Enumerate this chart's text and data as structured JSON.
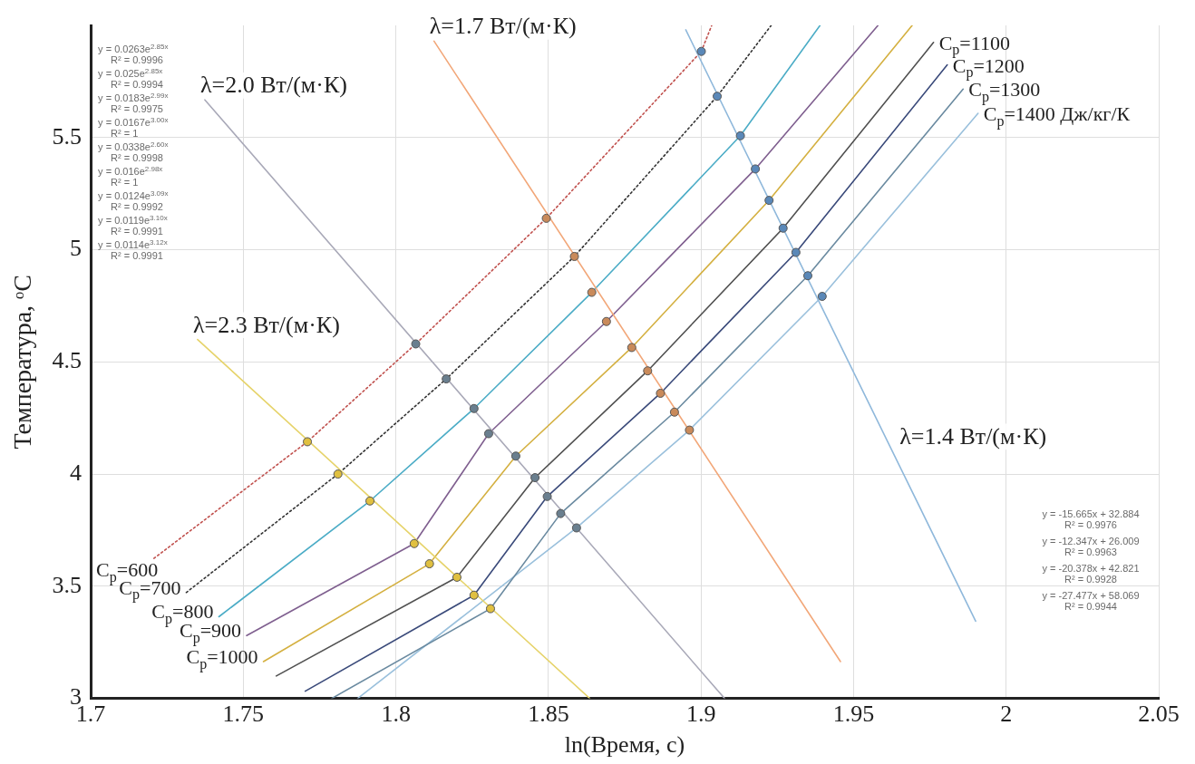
{
  "chart_data": {
    "type": "line",
    "xlabel": "ln(Время, с)",
    "ylabel": "Температура, ᵒC",
    "xlim": [
      1.7,
      2.05
    ],
    "ylim": [
      3,
      6
    ],
    "xticks": [
      1.7,
      1.75,
      1.8,
      1.85,
      1.9,
      1.95,
      2,
      2.05
    ],
    "yticks": [
      3,
      3.5,
      4,
      4.5,
      5,
      5.5
    ],
    "grid": true,
    "marker": "none",
    "line_style": "solid",
    "series": [
      {
        "type": "scatter",
        "marker": "circle",
        "color": "#e0c040",
        "x": [
          1.771,
          1.781,
          1.7915,
          1.806,
          1.811,
          1.82,
          1.8256,
          1.831
        ],
        "values": [
          4.144,
          4.0,
          3.88,
          3.69,
          3.6,
          3.54,
          3.46,
          3.4
        ]
      },
      {
        "type": "scatter",
        "marker": "circle",
        "color": "#6a7f8f",
        "x": [
          1.8065,
          1.8165,
          1.8256,
          1.8304,
          1.8393,
          1.8456,
          1.8496,
          1.854,
          1.8592
        ],
        "values": [
          4.58,
          4.424,
          4.292,
          4.18,
          4.08,
          3.984,
          3.9,
          3.824,
          3.76
        ]
      },
      {
        "type": "scatter",
        "marker": "circle",
        "color": "#c98a5a",
        "x": [
          1.8493,
          1.8585,
          1.8642,
          1.869,
          1.8773,
          1.8825,
          1.8867,
          1.8913,
          1.8962
        ],
        "values": [
          5.14,
          4.97,
          4.81,
          4.68,
          4.564,
          4.46,
          4.36,
          4.276,
          4.196
        ]
      },
      {
        "type": "scatter",
        "marker": "circle",
        "color": "#5a88b8",
        "x": [
          1.9001,
          1.9053,
          1.9129,
          1.9178,
          1.9223,
          1.9269,
          1.9311,
          1.935,
          1.9397
        ],
        "values": [
          5.884,
          5.684,
          5.508,
          5.36,
          5.22,
          5.096,
          4.988,
          4.884,
          4.792
        ]
      },
      {
        "name": "λ=2.0 Вт/(м·К)",
        "color": "#a9a9b8",
        "x": [
          1.7374,
          1.9077
        ],
        "values": [
          5.668,
          3.0
        ]
      },
      {
        "name": "λ=2.3 Вт/(м·К)",
        "color": "#e6d36a",
        "x": [
          1.735,
          1.8635
        ],
        "values": [
          4.6,
          3.0
        ]
      },
      {
        "name": "λ=1.7 Вт/(м·К)",
        "color": "#f2a779",
        "x": [
          1.8125,
          1.9457
        ],
        "values": [
          5.93,
          3.164
        ]
      },
      {
        "name": "λ=1.4 Вт/(м·К)",
        "color": "#8fb8db",
        "x": [
          1.895,
          1.99
        ],
        "values": [
          5.98,
          3.344
        ]
      },
      {
        "name": "C$_{p}$=600",
        "color": "#c0504d",
        "line_style": "dotted",
        "x": [
          1.7207,
          1.771,
          1.8065,
          1.8493,
          1.9001,
          1.9035
        ],
        "values": [
          3.624,
          4.144,
          4.58,
          5.14,
          5.884,
          6.0
        ]
      },
      {
        "name": "C$_{p}$=700",
        "color": "#333333",
        "line_style": "dotted",
        "x": [
          1.7313,
          1.781,
          1.8165,
          1.8585,
          1.9053,
          1.923
        ],
        "values": [
          3.472,
          4.0,
          4.424,
          4.97,
          5.684,
          6.0
        ]
      },
      {
        "name": "C$_{p}$=800",
        "color": "#4bacc6",
        "x": [
          1.742,
          1.7915,
          1.8256,
          1.8642,
          1.9129,
          1.939
        ],
        "values": [
          3.364,
          3.88,
          4.292,
          4.81,
          5.508,
          6.0
        ]
      },
      {
        "name": "C$_{p}$=900",
        "color": "#7f5f8f",
        "x": [
          1.7511,
          1.806,
          1.8304,
          1.869,
          1.9178,
          1.958
        ],
        "values": [
          3.28,
          3.69,
          4.18,
          4.68,
          5.36,
          6.0
        ]
      },
      {
        "name": "C$_{p}$=1000",
        "color": "#d4b040",
        "x": [
          1.7566,
          1.811,
          1.8393,
          1.8773,
          1.9223,
          1.9692
        ],
        "values": [
          3.164,
          3.6,
          4.08,
          4.564,
          5.22,
          6.0
        ]
      },
      {
        "name": "C$_{p}$=1100",
        "color": "#505050",
        "x": [
          1.7608,
          1.82,
          1.8456,
          1.8825,
          1.9269,
          1.9762
        ],
        "values": [
          3.1,
          3.54,
          3.984,
          4.46,
          5.096,
          5.924
        ]
      },
      {
        "name": "C$_{p}$=1200",
        "color": "#3a4a7a",
        "x": [
          1.7703,
          1.8256,
          1.8496,
          1.8867,
          1.9311,
          1.9807
        ],
        "values": [
          3.032,
          3.46,
          3.9,
          4.36,
          4.988,
          5.824
        ]
      },
      {
        "name": "C$_{p}$=1300",
        "color": "#6a8aa0",
        "x": [
          1.779,
          1.831,
          1.854,
          1.8913,
          1.935,
          1.9859
        ],
        "values": [
          3.0,
          3.4,
          3.824,
          4.276,
          4.884,
          5.716
        ]
      },
      {
        "name": "C$_{p}$=1400 Дж/кг/К",
        "color": "#9ac0dc",
        "x": [
          1.7875,
          1.8592,
          1.8962,
          1.9397,
          1.9908
        ],
        "values": [
          3.0,
          3.76,
          4.196,
          4.792,
          5.608
        ]
      }
    ],
    "annotations": [
      "y = -15.665x + 32.884\nR² = 0.9976",
      "y = -12.347x + 26.009\nR² = 0.9963",
      "y = -20.378x + 42.821\nR² = 0.9928",
      "y = -27.477x + 58.069\nR² = 0.9944",
      "y = 0.0263e$^{2.85x}$\nR² = 0.9996",
      "y = 0.025e$^{2.85x}$\nR² = 0.9994",
      "y = 0.0183e$^{2.99x}$\nR² = 0.9975",
      "y = 0.0167e$^{3.00x}$\nR² = 1",
      "y = 0.0338e$^{2.60x}$\nR² = 0.9998",
      "y = 0.016e$^{2.98x}$\nR² = 1",
      "y = 0.0124e$^{3.09x}$\nR² = 0.9992",
      "y = 0.0119e$^{3.10x}$\nR² = 0.9991",
      "y = 0.0114e$^{3.12x}$\nR² = 0.9991"
    ]
  }
}
